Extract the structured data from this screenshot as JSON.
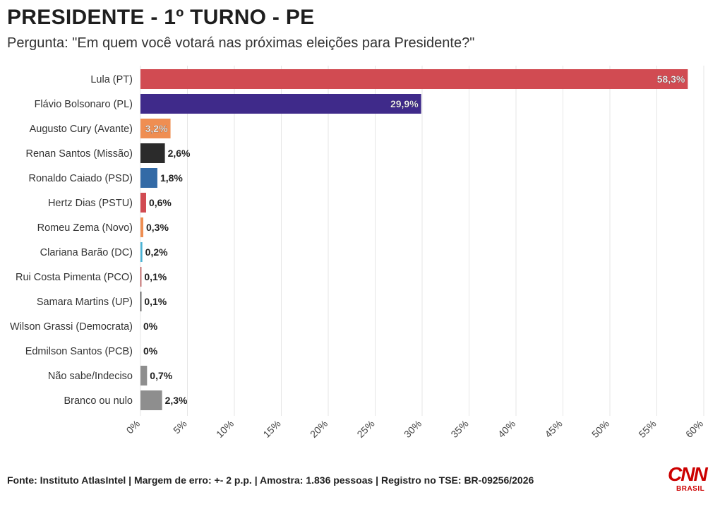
{
  "header": {
    "title": "PRESIDENTE - 1º TURNO - PE",
    "subtitle": "Pergunta: \"Em quem você votará nas próximas eleições para Presidente?\""
  },
  "footer": {
    "source": "Fonte: Instituto AtlasIntel | Margem de erro: +- 2 p.p. | Amostra: 1.836 pessoas | Registro no TSE: BR-09256/2026"
  },
  "logo": {
    "brand": "CNN",
    "region": "BRASIL"
  },
  "colors": {
    "pt": "#d14b52",
    "pl": "#3f2a8a",
    "avante": "#ef8e52",
    "missao": "#2b2b2b",
    "psd": "#336aa6",
    "pstu": "#d14b52",
    "novo": "#ef8e52",
    "dc": "#4bb3d5",
    "pco": "#b03a3a",
    "up": "#333333",
    "democrata": "#999999",
    "pcb": "#999999",
    "indeciso": "#8e8e8e",
    "branco": "#8e8e8e",
    "grid": "#e6e6e6",
    "brand": "#cc0000"
  },
  "chart_data": {
    "type": "bar",
    "orientation": "horizontal",
    "categories": [
      "Lula (PT)",
      "Flávio Bolsonaro (PL)",
      "Augusto Cury (Avante)",
      "Renan Santos (Missão)",
      "Ronaldo Caiado (PSD)",
      "Hertz Dias (PSTU)",
      "Romeu Zema (Novo)",
      "Clariana Barão (DC)",
      "Rui Costa Pimenta (PCO)",
      "Samara Martins (UP)",
      "Wilson Grassi (Democrata)",
      "Edmilson Santos (PCB)",
      "Não sabe/Indeciso",
      "Branco ou nulo"
    ],
    "values": [
      58.3,
      29.9,
      3.2,
      2.6,
      1.8,
      0.6,
      0.3,
      0.2,
      0.1,
      0.1,
      0,
      0,
      0.7,
      2.3
    ],
    "value_labels": [
      "58,3%",
      "29,9%",
      "3,2%",
      "2,6%",
      "1,8%",
      "0,6%",
      "0,3%",
      "0,2%",
      "0,1%",
      "0,1%",
      "0%",
      "0%",
      "0,7%",
      "2,3%"
    ],
    "bar_colors": [
      "#d14b52",
      "#3f2a8a",
      "#ef8e52",
      "#2b2b2b",
      "#336aa6",
      "#d14b52",
      "#ef8e52",
      "#4bb3d5",
      "#b03a3a",
      "#333333",
      "#999999",
      "#999999",
      "#8e8e8e",
      "#8e8e8e"
    ],
    "label_inside": [
      true,
      true,
      true,
      false,
      false,
      false,
      false,
      false,
      false,
      false,
      false,
      false,
      false,
      false
    ],
    "x_ticks": [
      0,
      5,
      10,
      15,
      20,
      25,
      30,
      35,
      40,
      45,
      50,
      55,
      60
    ],
    "x_tick_labels": [
      "0%",
      "5%",
      "10%",
      "15%",
      "20%",
      "25%",
      "30%",
      "35%",
      "40%",
      "45%",
      "50%",
      "55%",
      "60%"
    ],
    "xlim": [
      0,
      60
    ],
    "grid": true,
    "xlabel": "",
    "ylabel": ""
  }
}
